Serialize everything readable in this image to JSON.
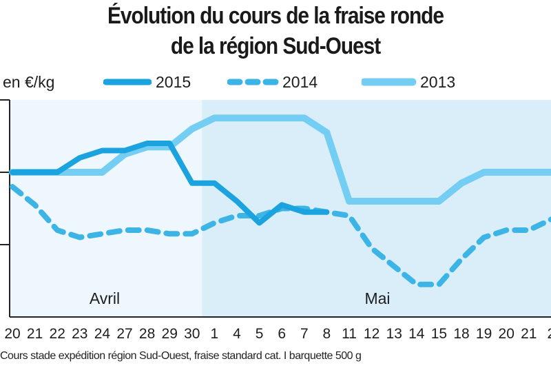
{
  "title_line1": "Évolution du cours de la fraise ronde",
  "title_line2": "de la région Sud-Ouest",
  "unit_label": "en €/kg",
  "caption": "Cours stade expédition région Sud-Ouest, fraise standard cat. I barquette 500 g",
  "colors": {
    "s2015": "#1aa3de",
    "s2014": "#3cb4e6",
    "s2013": "#74cdf2",
    "band_light": "#edf7fd",
    "band_dark": "#daeefa",
    "axis": "#222222"
  },
  "chart_data": {
    "type": "line",
    "x": [
      "20",
      "21",
      "22",
      "23",
      "24",
      "27",
      "28",
      "29",
      "30",
      "1",
      "4",
      "5",
      "6",
      "7",
      "8",
      "11",
      "12",
      "13",
      "14",
      "15",
      "18",
      "19",
      "20",
      "21",
      "2"
    ],
    "months": [
      {
        "label": "Avril",
        "from": 0,
        "to": 8
      },
      {
        "label": "Mai",
        "from": 9,
        "to": 24
      }
    ],
    "ylim": [
      0,
      3
    ],
    "ylabel": "en €/kg",
    "grid": false,
    "legend_position": "top",
    "series": [
      {
        "name": "2015",
        "style": "solid-thick",
        "color": "#1aa3de",
        "values": [
          2,
          2,
          2,
          2.2,
          2.3,
          2.3,
          2.4,
          2.4,
          1.85,
          1.85,
          1.6,
          1.3,
          1.55,
          1.45,
          1.45,
          null,
          null,
          null,
          null,
          null,
          null,
          null,
          null,
          null,
          null
        ]
      },
      {
        "name": "2014",
        "style": "dashed",
        "color": "#3cb4e6",
        "values": [
          1.8,
          1.55,
          1.2,
          1.1,
          1.15,
          1.2,
          1.2,
          1.15,
          1.15,
          1.3,
          1.4,
          1.4,
          1.5,
          1.5,
          1.45,
          1.4,
          0.95,
          0.7,
          0.45,
          0.45,
          0.8,
          1.1,
          1.2,
          1.2,
          1.35
        ]
      },
      {
        "name": "2013",
        "style": "solid-light",
        "color": "#74cdf2",
        "values": [
          2,
          2,
          2,
          2,
          2,
          2.25,
          2.35,
          2.35,
          2.6,
          2.75,
          2.75,
          2.75,
          2.75,
          2.75,
          2.55,
          1.6,
          1.6,
          1.6,
          1.6,
          1.6,
          1.85,
          2,
          2,
          2,
          2
        ]
      }
    ]
  }
}
